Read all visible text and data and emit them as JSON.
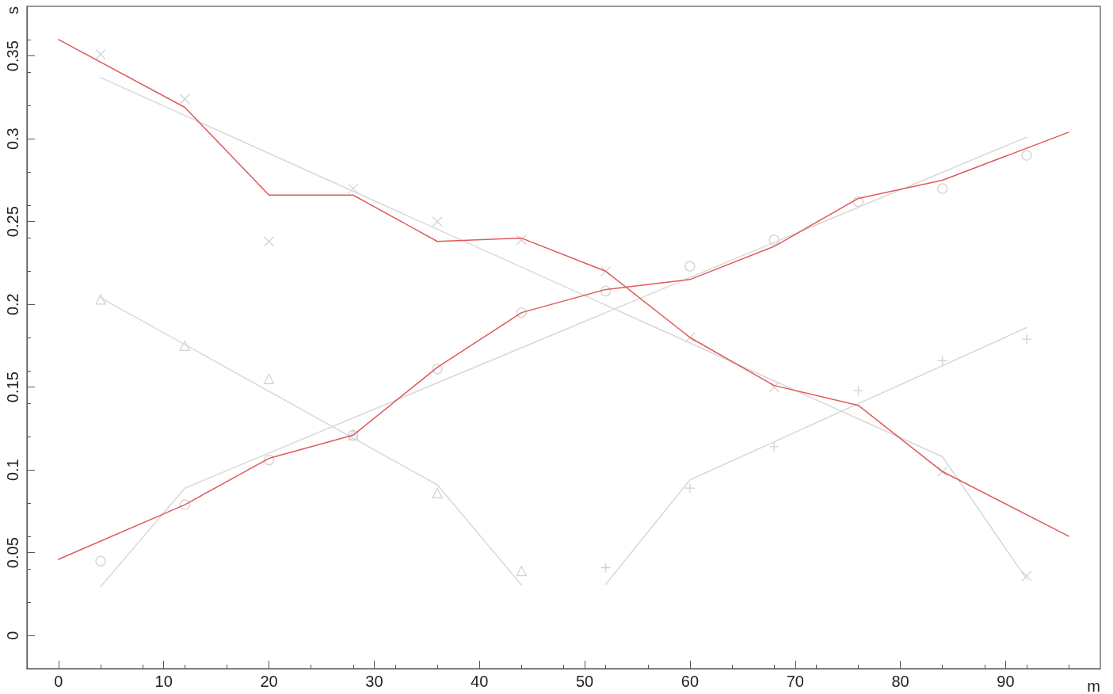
{
  "chart_data": {
    "type": "line",
    "xlabel": "m",
    "ylabel": "s",
    "xlim": [
      -3,
      99
    ],
    "ylim": [
      -0.02,
      0.38
    ],
    "xticks": [
      0,
      10,
      20,
      30,
      40,
      50,
      60,
      70,
      80,
      90
    ],
    "yticks": [
      0,
      0.05,
      0.1,
      0.15,
      0.2,
      0.25,
      0.3,
      0.35
    ],
    "marker": "none",
    "line_style": "solid",
    "series": [
      {
        "color": "#d8d8d8",
        "x": [
          4,
          84,
          92
        ],
        "values": [
          0.337,
          0.108,
          0.034
        ]
      },
      {
        "color": "#d8d8d8",
        "x": [
          4,
          12,
          92
        ],
        "values": [
          0.0295,
          0.089,
          0.301
        ]
      },
      {
        "color": "#d8d8d8",
        "x": [
          4,
          36,
          44
        ],
        "values": [
          0.204,
          0.091,
          0.0305
        ]
      },
      {
        "color": "#d8d8d8",
        "x": [
          52,
          60,
          92
        ],
        "values": [
          0.031,
          0.094,
          0.186
        ]
      },
      {
        "type": "scatter",
        "marker": "x",
        "color": "#c8c8c8",
        "x": [
          4,
          12,
          20,
          28,
          36,
          44,
          52,
          60,
          68,
          84,
          92
        ],
        "values": [
          0.351,
          0.324,
          0.238,
          0.27,
          0.25,
          0.239,
          0.22,
          0.18,
          0.15,
          0.099,
          0.036
        ]
      },
      {
        "type": "scatter",
        "marker": "circle",
        "color": "#c8c8c8",
        "x": [
          4,
          12,
          20,
          28,
          36,
          44,
          52,
          60,
          68,
          76,
          84,
          92
        ],
        "values": [
          0.045,
          0.079,
          0.106,
          0.121,
          0.161,
          0.195,
          0.208,
          0.223,
          0.239,
          0.262,
          0.27,
          0.29
        ]
      },
      {
        "type": "scatter",
        "marker": "triangle",
        "color": "#c8c8c8",
        "x": [
          4,
          12,
          20,
          28,
          36,
          44
        ],
        "values": [
          0.203,
          0.175,
          0.155,
          0.121,
          0.086,
          0.039
        ]
      },
      {
        "type": "scatter",
        "marker": "cross",
        "color": "#c8c8c8",
        "x": [
          52,
          60,
          68,
          76,
          84,
          92
        ],
        "values": [
          0.041,
          0.089,
          0.114,
          0.148,
          0.166,
          0.179
        ]
      },
      {
        "color": "#e05a5a",
        "x": [
          0,
          12,
          20,
          28,
          36,
          44,
          52,
          60,
          68,
          76,
          84,
          96
        ],
        "values": [
          0.36,
          0.319,
          0.266,
          0.266,
          0.238,
          0.24,
          0.22,
          0.18,
          0.151,
          0.139,
          0.099,
          0.06
        ]
      },
      {
        "color": "#e05a5a",
        "x": [
          0,
          12,
          20,
          28,
          36,
          44,
          52,
          60,
          68,
          76,
          84,
          96
        ],
        "values": [
          0.046,
          0.079,
          0.107,
          0.121,
          0.162,
          0.195,
          0.209,
          0.215,
          0.235,
          0.264,
          0.275,
          0.304
        ]
      }
    ]
  }
}
